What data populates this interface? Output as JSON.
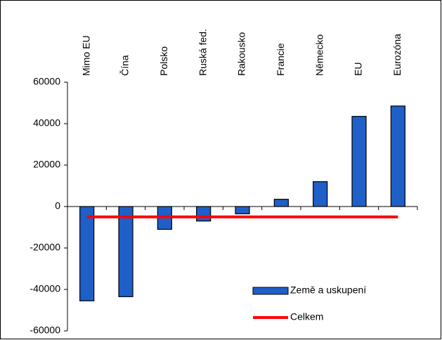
{
  "chart_data": {
    "type": "bar",
    "categories": [
      "Mimo EU",
      "Čína",
      "Polsko",
      "Ruská fed.",
      "Rakousko",
      "Francie",
      "Německo",
      "EU",
      "Eurozóna"
    ],
    "series": [
      {
        "name": "Země a uskupení",
        "type": "bar",
        "color": "#1f5fc8",
        "values": [
          -45500,
          -43500,
          -11000,
          -7000,
          -3500,
          3500,
          12000,
          43500,
          48500
        ]
      },
      {
        "name": "Celkem",
        "type": "line",
        "color": "#ff0000",
        "values": [
          -5000,
          -5000,
          -5000,
          -5000,
          -5000,
          -5000,
          -5000,
          -5000,
          -5000
        ]
      }
    ],
    "ylim": [
      -60000,
      60000
    ],
    "yticks": [
      -60000,
      -40000,
      -20000,
      0,
      20000,
      40000,
      60000
    ],
    "legend": "lower-right"
  }
}
